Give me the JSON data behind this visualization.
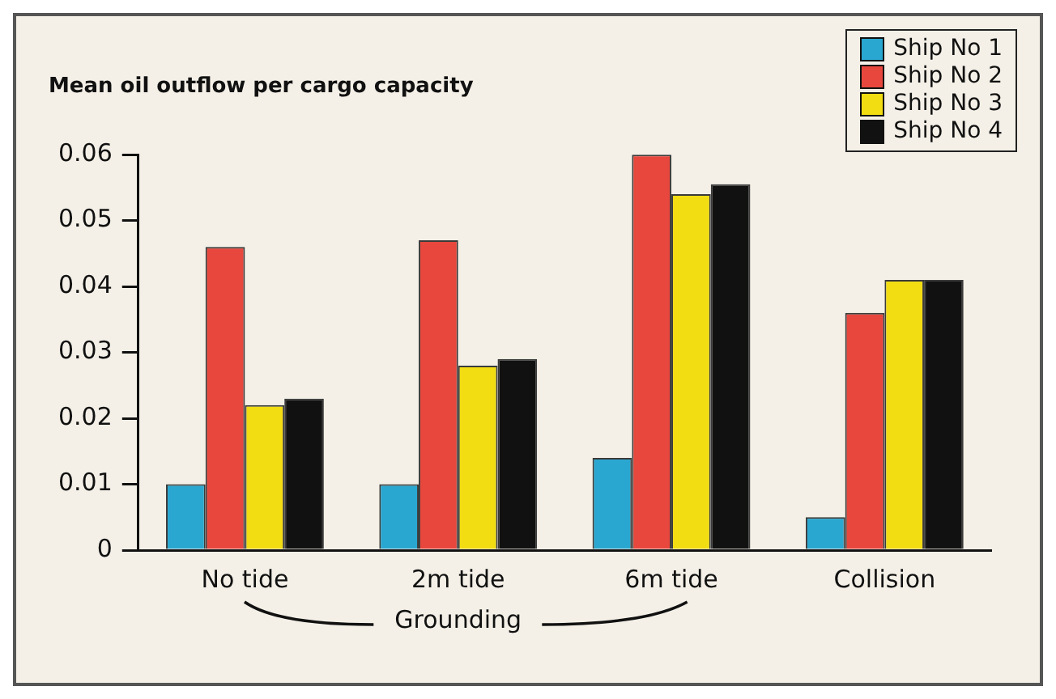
{
  "chart_data": {
    "type": "bar",
    "title": "Mean oil outflow per cargo capacity",
    "categories": [
      "No tide",
      "2m tide",
      "6m tide",
      "Collision"
    ],
    "series": [
      {
        "name": "Ship No 1",
        "color": "#2aa7d0",
        "values": [
          0.01,
          0.01,
          0.014,
          0.005
        ]
      },
      {
        "name": "Ship No 2",
        "color": "#e8473e",
        "values": [
          0.046,
          0.047,
          0.06,
          0.036
        ]
      },
      {
        "name": "Ship No 3",
        "color": "#f2dc12",
        "values": [
          0.022,
          0.028,
          0.054,
          0.041
        ]
      },
      {
        "name": "Ship No 4",
        "color": "#111111",
        "values": [
          0.023,
          0.029,
          0.0555,
          0.041
        ]
      }
    ],
    "ylim": [
      0,
      0.06
    ],
    "yticks": [
      0,
      0.01,
      0.02,
      0.03,
      0.04,
      0.05,
      0.06
    ],
    "grid": false,
    "legend": "top right",
    "annotations": [
      "Grounding"
    ]
  }
}
